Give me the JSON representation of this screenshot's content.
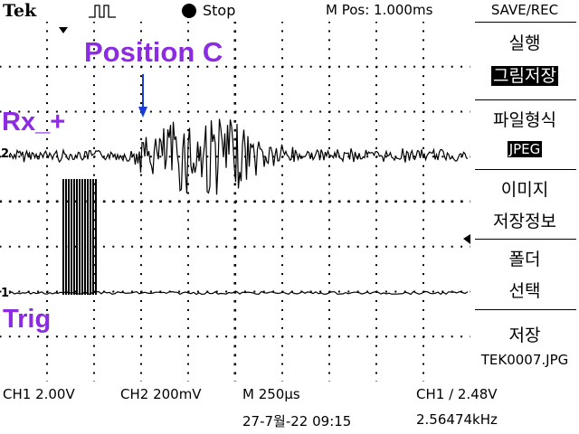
{
  "header": {
    "brand": "Tek",
    "acq_icon": "pulse-trigger-icon",
    "run_state": "Stop",
    "mpos": "M Pos: 1.000ms"
  },
  "annotations": {
    "position_label": "Position C",
    "rx_label": "Rx_+",
    "trig_label": "Trig",
    "color": "#8b2be2",
    "arrow_color": "#1a3cd6"
  },
  "markers": {
    "ch2": "2",
    "ch1": "1"
  },
  "menu": {
    "title": "SAVE/REC",
    "run": "실행",
    "image_save": "그림저장",
    "file_format": "파일형식",
    "format_value": "JPEG",
    "image_info_1": "이미지",
    "image_info_2": "저장정보",
    "folder_1": "폴더",
    "folder_2": "선택",
    "save": "저장",
    "filename": "TEK0007.JPG"
  },
  "status": {
    "ch1": "CH1  2.00V",
    "ch2": "CH2  200mV",
    "timebase": "M 250µs",
    "trigger": "CH1 ∕ 2.48V",
    "datetime": "27-7월-22  09:15",
    "frequency": "2.56474kHz"
  }
}
